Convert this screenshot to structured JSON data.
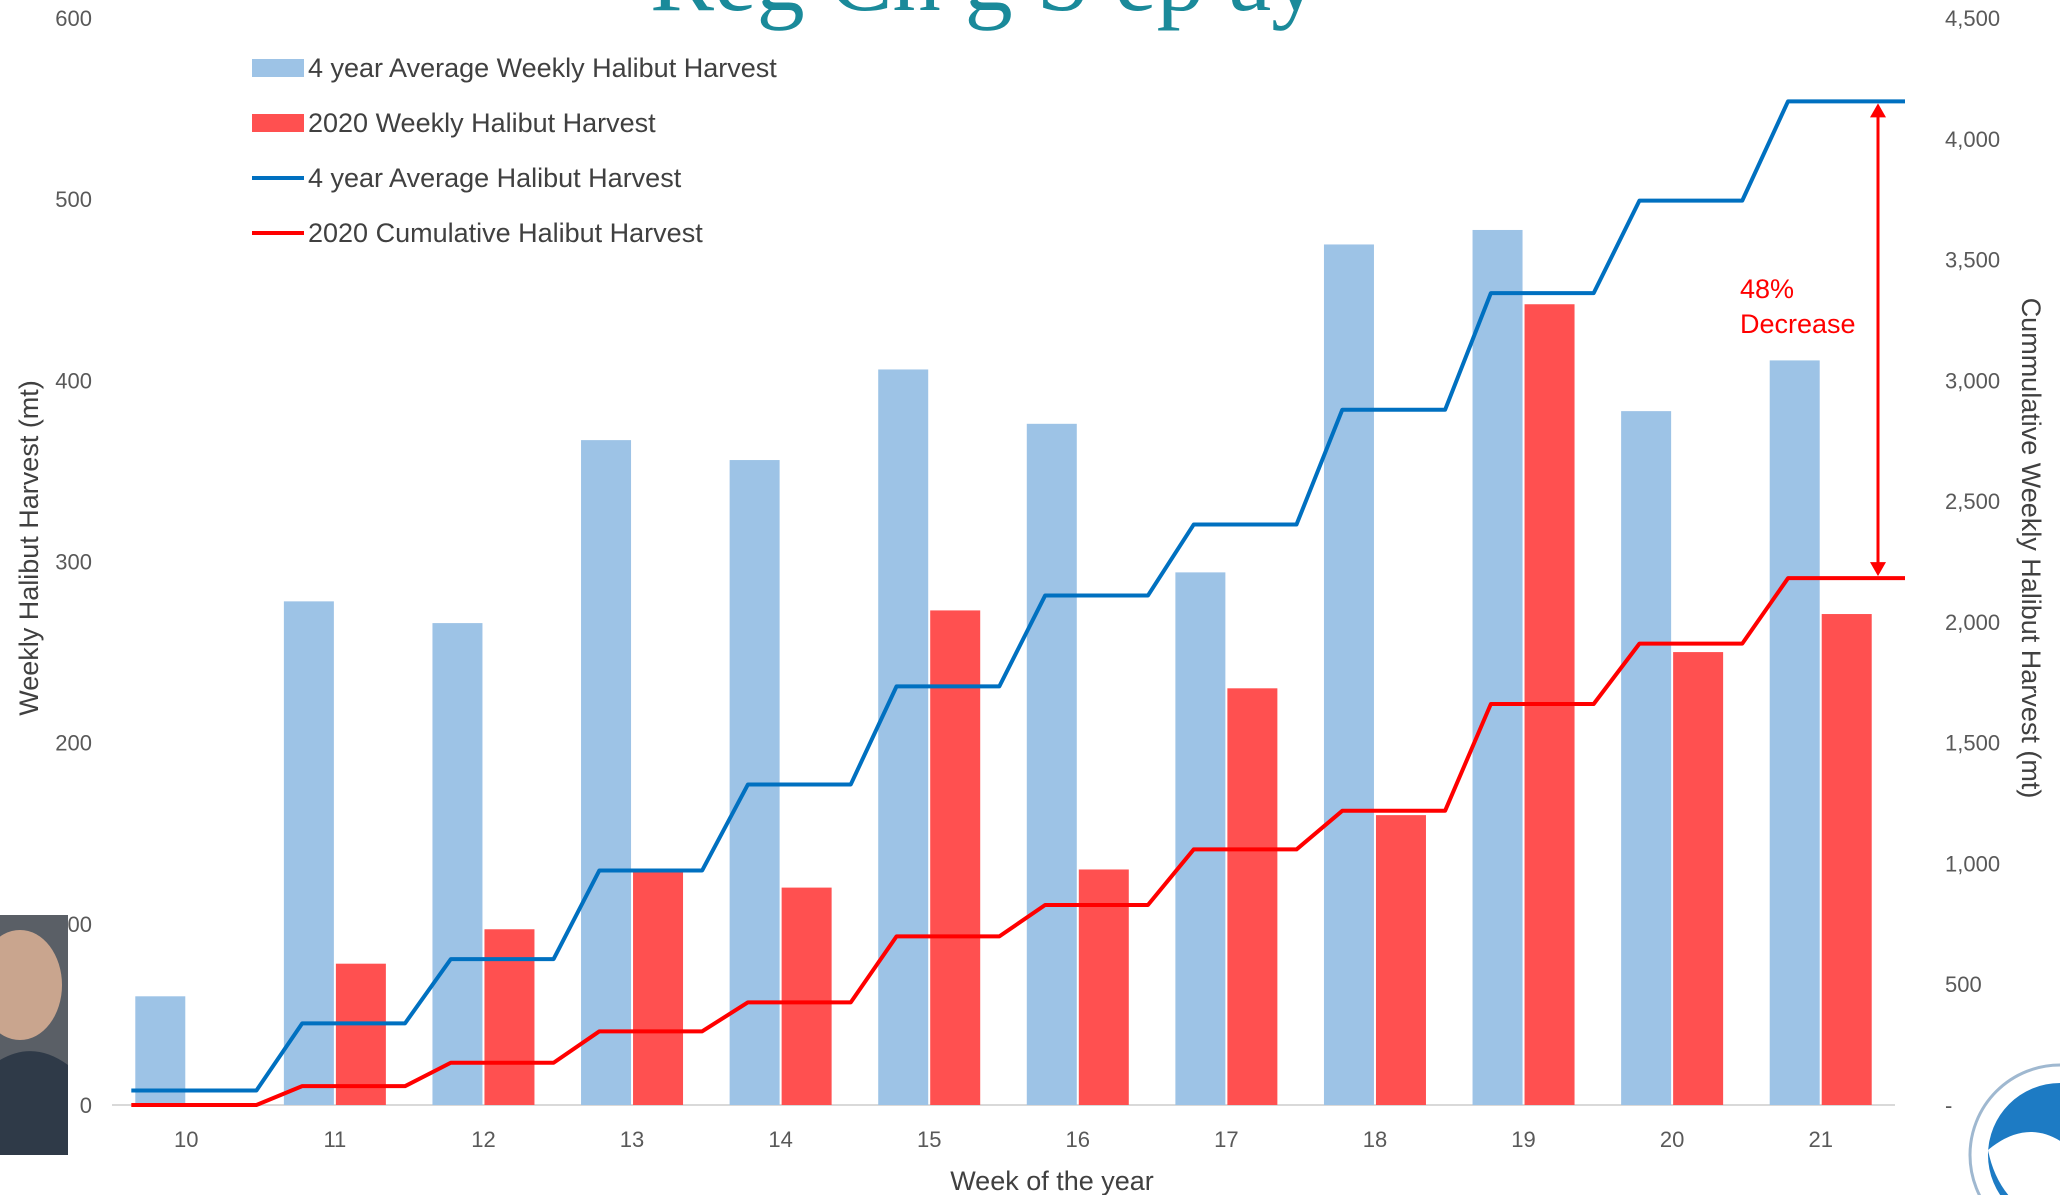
{
  "heading_text": "Reg Ch   g   S   ep   ay   ",
  "chart_data": {
    "type": "bar",
    "categories": [
      "10",
      "11",
      "12",
      "13",
      "14",
      "15",
      "16",
      "17",
      "18",
      "19",
      "20",
      "21"
    ],
    "series": [
      {
        "name": "4 year Average Weekly Halibut Harvest",
        "kind": "bar",
        "axis": "left",
        "color": "#9dc3e6",
        "values": [
          60,
          278,
          266,
          367,
          356,
          406,
          376,
          294,
          475,
          483,
          383,
          411
        ]
      },
      {
        "name": "2020 Weekly Halibut Harvest",
        "kind": "bar",
        "axis": "left",
        "color": "#ff5050",
        "values": [
          0,
          78,
          97,
          130,
          120,
          273,
          130,
          230,
          160,
          442,
          250,
          271
        ]
      },
      {
        "name": "4 year Average Halibut Harvest",
        "kind": "step-line",
        "axis": "right",
        "color": "#0070c0",
        "values": [
          60,
          338,
          604,
          971,
          1327,
          1733,
          2109,
          2403,
          2878,
          3361,
          3744,
          4155
        ]
      },
      {
        "name": "2020 Cumulative Halibut Harvest",
        "kind": "step-line",
        "axis": "right",
        "color": "#ff0000",
        "values": [
          0,
          78,
          175,
          305,
          425,
          698,
          828,
          1058,
          1218,
          1660,
          1910,
          2181
        ]
      }
    ],
    "xlabel": "Week of the year",
    "ylabel": "Weekly Halibut Harvest (mt)",
    "y2label": "Cummulative Weekly Halibut Harvest (mt)",
    "ylim": [
      0,
      600
    ],
    "y2lim": [
      0,
      4500
    ],
    "yticks": [
      "0",
      "100",
      "200",
      "300",
      "400",
      "500",
      "600"
    ],
    "y2ticks": [
      "-",
      "500",
      "1,000",
      "1,500",
      "2,000",
      "2,500",
      "3,000",
      "3,500",
      "4,000",
      "4,500"
    ],
    "grid": false,
    "legend": "top-left",
    "annotation": {
      "lines": [
        "48%",
        "Decrease"
      ],
      "color": "#ff0000",
      "from_value": 4155,
      "to_value": 2181
    }
  }
}
